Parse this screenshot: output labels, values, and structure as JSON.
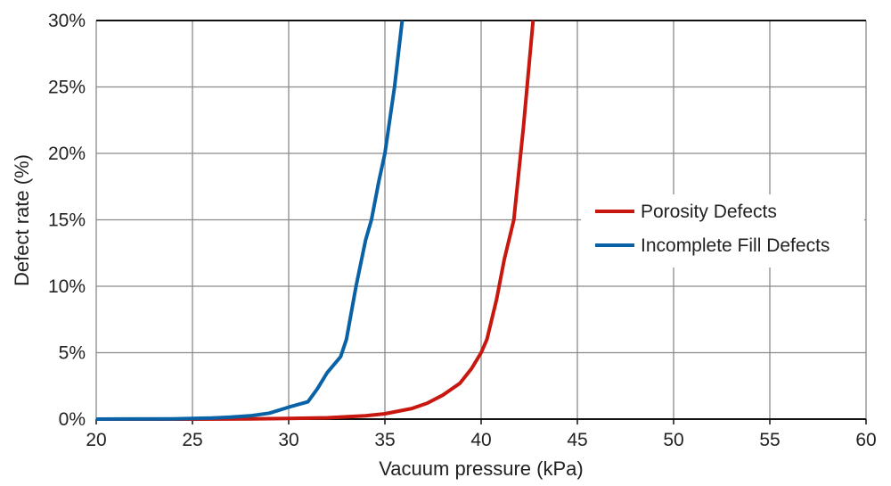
{
  "chart_data": {
    "type": "line",
    "title": "",
    "xlabel": "Vacuum pressure (kPa)",
    "ylabel": "Defect rate (%)",
    "xlim": [
      20,
      60
    ],
    "ylim": [
      0,
      30
    ],
    "x_ticks": [
      "20",
      "25",
      "30",
      "35",
      "40",
      "45",
      "50",
      "55",
      "60"
    ],
    "y_ticks": [
      "0%",
      "5%",
      "10%",
      "15%",
      "20%",
      "25%",
      "30%"
    ],
    "grid": true,
    "legend_position": "right",
    "series": [
      {
        "name": "Porosity Defects",
        "color": "#c8170f",
        "x": [
          20,
          25,
          28,
          30,
          32,
          34,
          35,
          36.4,
          37.2,
          38,
          38.9,
          39.5,
          40,
          40.3,
          40.8,
          41.2,
          41.7,
          42.2,
          42.7
        ],
        "y": [
          0,
          0,
          0.02,
          0.05,
          0.1,
          0.25,
          0.4,
          0.8,
          1.2,
          1.8,
          2.7,
          3.8,
          5,
          6,
          9,
          12,
          15,
          22,
          30
        ]
      },
      {
        "name": "Incomplete Fill Defects",
        "color": "#0a62a6",
        "x": [
          20,
          24,
          26,
          27,
          28,
          29,
          30,
          31,
          31.5,
          32,
          32.7,
          33,
          33.5,
          34,
          34.3,
          34.7,
          35,
          35.5,
          35.9
        ],
        "y": [
          0,
          0.02,
          0.08,
          0.15,
          0.25,
          0.45,
          0.9,
          1.3,
          2.3,
          3.5,
          4.7,
          6,
          10,
          13.5,
          15,
          18,
          20,
          25,
          30
        ]
      }
    ]
  }
}
